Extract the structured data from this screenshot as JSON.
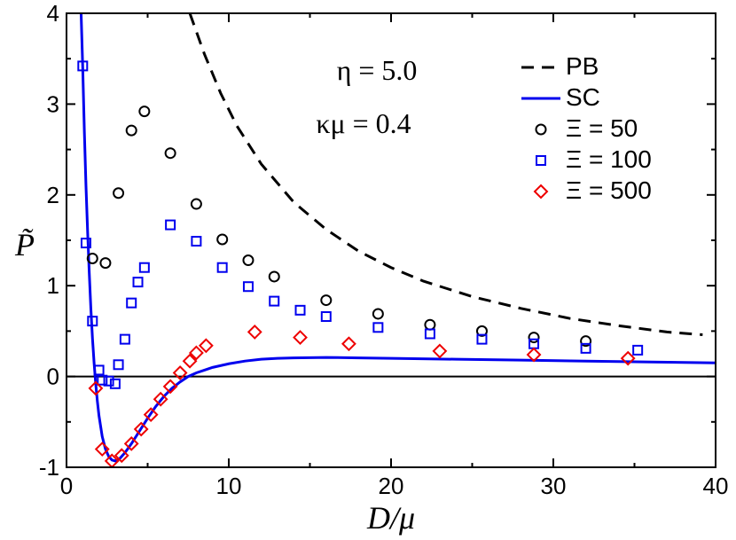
{
  "chart_data": {
    "type": "scatter",
    "title": "",
    "xlabel": "D/μ",
    "ylabel": "P̃",
    "xlim": [
      0,
      40
    ],
    "ylim": [
      -1,
      4
    ],
    "xticks": [
      0,
      10,
      20,
      30,
      40
    ],
    "yticks": [
      -1,
      0,
      1,
      2,
      3,
      4
    ],
    "xtick_labels": [
      "0",
      "10",
      "20",
      "30",
      "40"
    ],
    "ytick_labels": [
      "-1",
      "0",
      "1",
      "2",
      "3",
      "4"
    ],
    "grid": false,
    "zero_line": true,
    "legend_position": "top-right",
    "annotations": [
      "η = 5.0",
      "κμ = 0.4"
    ],
    "series": [
      {
        "name": "PB",
        "kind": "line",
        "style": "dashed",
        "color": "#000000",
        "x": [
          7.6,
          8.5,
          9.5,
          10.5,
          12,
          14,
          16,
          18,
          20,
          22,
          25,
          28,
          31,
          34,
          37,
          39.2
        ],
        "y": [
          4.0,
          3.55,
          3.12,
          2.76,
          2.34,
          1.92,
          1.62,
          1.38,
          1.2,
          1.05,
          0.88,
          0.75,
          0.64,
          0.56,
          0.49,
          0.46
        ]
      },
      {
        "name": "SC",
        "kind": "line",
        "style": "solid",
        "color": "#0000ee",
        "x": [
          0.9,
          1.0,
          1.1,
          1.2,
          1.3,
          1.4,
          1.5,
          1.6,
          1.7,
          1.8,
          1.9,
          2.0,
          2.2,
          2.4,
          2.6,
          2.8,
          3.0,
          3.3,
          3.6,
          4.0,
          4.5,
          5.0,
          5.5,
          6.0,
          6.5,
          7.0,
          7.5,
          8.0,
          8.5,
          9.0,
          10.0,
          11.0,
          12.0,
          13.0,
          14.0,
          16.0,
          18.0,
          20.0,
          24.0,
          28.0,
          32.0,
          36.0,
          40.0
        ],
        "y": [
          4.0,
          3.4,
          2.7,
          2.1,
          1.6,
          1.15,
          0.75,
          0.42,
          0.15,
          -0.08,
          -0.27,
          -0.43,
          -0.66,
          -0.8,
          -0.88,
          -0.92,
          -0.93,
          -0.9,
          -0.84,
          -0.74,
          -0.6,
          -0.46,
          -0.33,
          -0.22,
          -0.13,
          -0.06,
          0.0,
          0.04,
          0.07,
          0.1,
          0.14,
          0.17,
          0.19,
          0.2,
          0.205,
          0.21,
          0.205,
          0.2,
          0.19,
          0.18,
          0.17,
          0.16,
          0.15
        ]
      },
      {
        "name": "Ξ = 50",
        "kind": "scatter",
        "marker": "circle",
        "color": "#000000",
        "x": [
          1.6,
          2.4,
          3.2,
          4.0,
          4.8,
          6.4,
          8.0,
          9.6,
          11.2,
          12.8,
          16.0,
          19.2,
          22.4,
          25.6,
          28.8,
          32.0
        ],
        "y": [
          1.3,
          1.25,
          2.02,
          2.71,
          2.92,
          2.46,
          1.9,
          1.51,
          1.28,
          1.1,
          0.84,
          0.69,
          0.57,
          0.5,
          0.43,
          0.39
        ]
      },
      {
        "name": "Ξ = 100",
        "kind": "scatter",
        "marker": "square",
        "color": "#0000ee",
        "x": [
          1.0,
          1.2,
          1.6,
          2.0,
          2.2,
          2.6,
          3.0,
          3.2,
          3.6,
          4.0,
          4.4,
          4.8,
          6.4,
          8.0,
          9.6,
          11.2,
          12.8,
          14.4,
          16.0,
          19.2,
          22.4,
          25.6,
          28.8,
          32.0,
          35.2
        ],
        "y": [
          3.42,
          1.47,
          0.61,
          0.07,
          -0.04,
          -0.05,
          -0.08,
          0.13,
          0.41,
          0.81,
          1.04,
          1.2,
          1.67,
          1.49,
          1.2,
          0.99,
          0.83,
          0.73,
          0.66,
          0.54,
          0.47,
          0.41,
          0.36,
          0.31,
          0.29
        ]
      },
      {
        "name": "Ξ = 500",
        "kind": "scatter",
        "marker": "diamond",
        "color": "#ee0000",
        "x": [
          1.8,
          2.2,
          2.8,
          3.4,
          4.0,
          4.6,
          5.2,
          5.8,
          6.4,
          7.0,
          7.6,
          8.0,
          8.6,
          11.6,
          14.4,
          17.4,
          23.0,
          28.8,
          34.6
        ],
        "y": [
          -0.13,
          -0.8,
          -0.93,
          -0.87,
          -0.74,
          -0.58,
          -0.42,
          -0.25,
          -0.11,
          0.04,
          0.17,
          0.26,
          0.34,
          0.49,
          0.43,
          0.36,
          0.28,
          0.24,
          0.2
        ]
      }
    ],
    "legend": [
      {
        "label": "PB",
        "symbol": "dashed-line",
        "color": "#000000"
      },
      {
        "label": "SC",
        "symbol": "solid-line",
        "color": "#0000ee"
      },
      {
        "label": "Ξ = 50",
        "symbol": "circle",
        "color": "#000000"
      },
      {
        "label": "Ξ = 100",
        "symbol": "square",
        "color": "#0000ee"
      },
      {
        "label": "Ξ = 500",
        "symbol": "diamond",
        "color": "#ee0000"
      }
    ]
  }
}
